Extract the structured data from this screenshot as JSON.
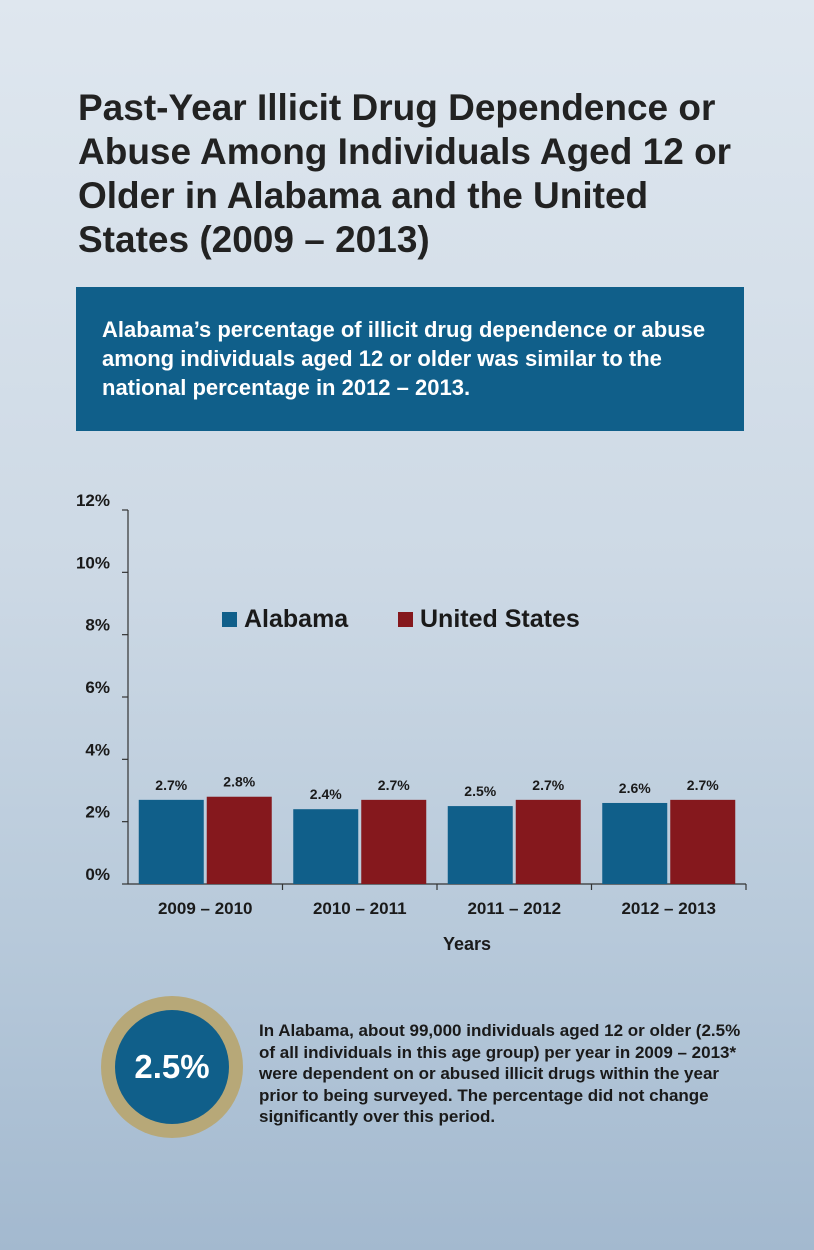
{
  "title": "Past-Year Illicit Drug Dependence or Abuse Among Individuals Aged 12 or Older in Alabama and the United States (2009 – 2013)",
  "callout": "Alabama’s percentage of illicit drug dependence or abuse among individuals aged 12 or older was similar to the national percentage in 2012 – 2013.",
  "chart_data": {
    "type": "bar",
    "categories": [
      "2009 – 2010",
      "2010 – 2011",
      "2011 – 2012",
      "2012 – 2013"
    ],
    "series": [
      {
        "name": "Alabama",
        "values": [
          2.7,
          2.4,
          2.5,
          2.6
        ],
        "labels": [
          "2.7%",
          "2.4%",
          "2.5%",
          "2.6%"
        ],
        "color": "#105f8a"
      },
      {
        "name": "United States",
        "values": [
          2.8,
          2.7,
          2.7,
          2.7
        ],
        "labels": [
          "2.8%",
          "2.7%",
          "2.7%",
          "2.7%"
        ],
        "color": "#85181d"
      }
    ],
    "ylim": [
      0,
      12
    ],
    "yticks": [
      0,
      2,
      4,
      6,
      8,
      10,
      12
    ],
    "ytick_labels": [
      "0%",
      "2%",
      "4%",
      "6%",
      "8%",
      "10%",
      "12%"
    ],
    "xlabel": "Years",
    "ylabel": "",
    "legend_position": "top-center",
    "grid": false
  },
  "stat": {
    "value": "2.5%",
    "text": "In Alabama, about 99,000 individuals aged 12 or older (2.5% of all individuals in this age group) per year in 2009 – 2013* were dependent on or abused illicit drugs within the year prior to being surveyed. The percentage did not change significantly over this period."
  }
}
